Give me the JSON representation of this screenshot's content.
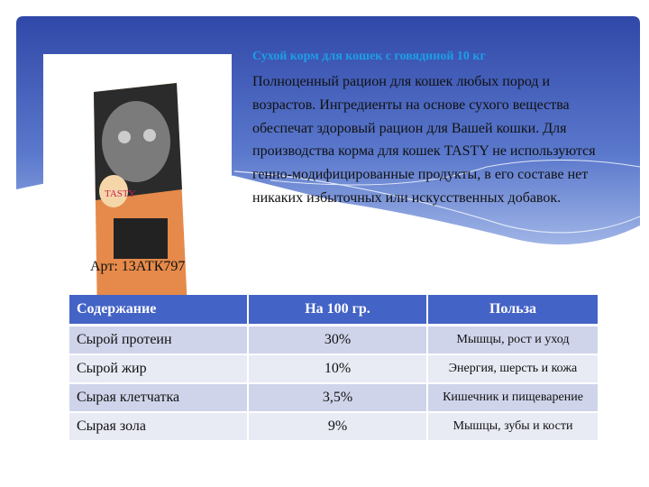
{
  "product": {
    "title": "Сухой корм для кошек с говядиной 10 кг",
    "description": " Полноценный рацион для кошек любых пород и возрастов. Ингредиенты на основе сухого вещества обеспечат здоровый рацион для Вашей кошки. Для производства корма для кошек TASTY не используются генно-модифицированные продукты, в его составе нет никаких избыточных или искусственных добавок.",
    "article": "Арт: 13АТК797",
    "brand_on_pack": "TASTY"
  },
  "table": {
    "headers": [
      "Содержание",
      "На 100 гр.",
      "Польза"
    ],
    "rows": [
      [
        "Сырой протеин",
        "30%",
        "Мышцы,  рост и уход"
      ],
      [
        "Сырой жир",
        "10%",
        "Энергия, шерсть и кожа"
      ],
      [
        "Сырая клетчатка",
        "3,5%",
        "Кишечник и пищеварение"
      ],
      [
        "Сырая зола",
        "9%",
        "Мышцы, зубы и кости"
      ]
    ]
  },
  "colors": {
    "band_dark": "#3048a8",
    "band_light": "#8fa6de",
    "title": "#1e9ee8",
    "table_header": "#4463c6"
  }
}
